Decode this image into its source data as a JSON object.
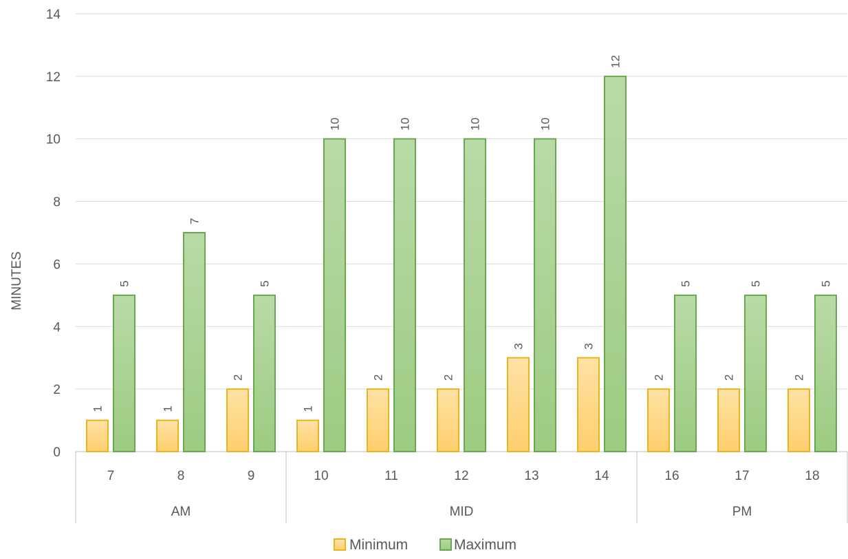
{
  "chart_data": {
    "type": "bar",
    "title": "",
    "xlabel": "",
    "ylabel": "MINUTES",
    "ylim": [
      0,
      14
    ],
    "ytick_step": 2,
    "grid": true,
    "legend_position": "bottom",
    "categories": [
      "7",
      "8",
      "9",
      "10",
      "11",
      "12",
      "13",
      "14",
      "16",
      "17",
      "18"
    ],
    "groups": [
      {
        "label": "AM",
        "categories": [
          "7",
          "8",
          "9"
        ]
      },
      {
        "label": "MID",
        "categories": [
          "10",
          "11",
          "12",
          "13",
          "14"
        ]
      },
      {
        "label": "PM",
        "categories": [
          "16",
          "17",
          "18"
        ]
      }
    ],
    "series": [
      {
        "name": "Minimum",
        "values": [
          1,
          1,
          2,
          1,
          2,
          2,
          3,
          3,
          2,
          2,
          2
        ],
        "color": "#FFD37A",
        "stroke": "#E8B51E"
      },
      {
        "name": "Maximum",
        "values": [
          5,
          7,
          5,
          10,
          10,
          10,
          10,
          12,
          5,
          5,
          5
        ],
        "color": "#A9D18E",
        "stroke": "#6AA84F"
      }
    ]
  }
}
